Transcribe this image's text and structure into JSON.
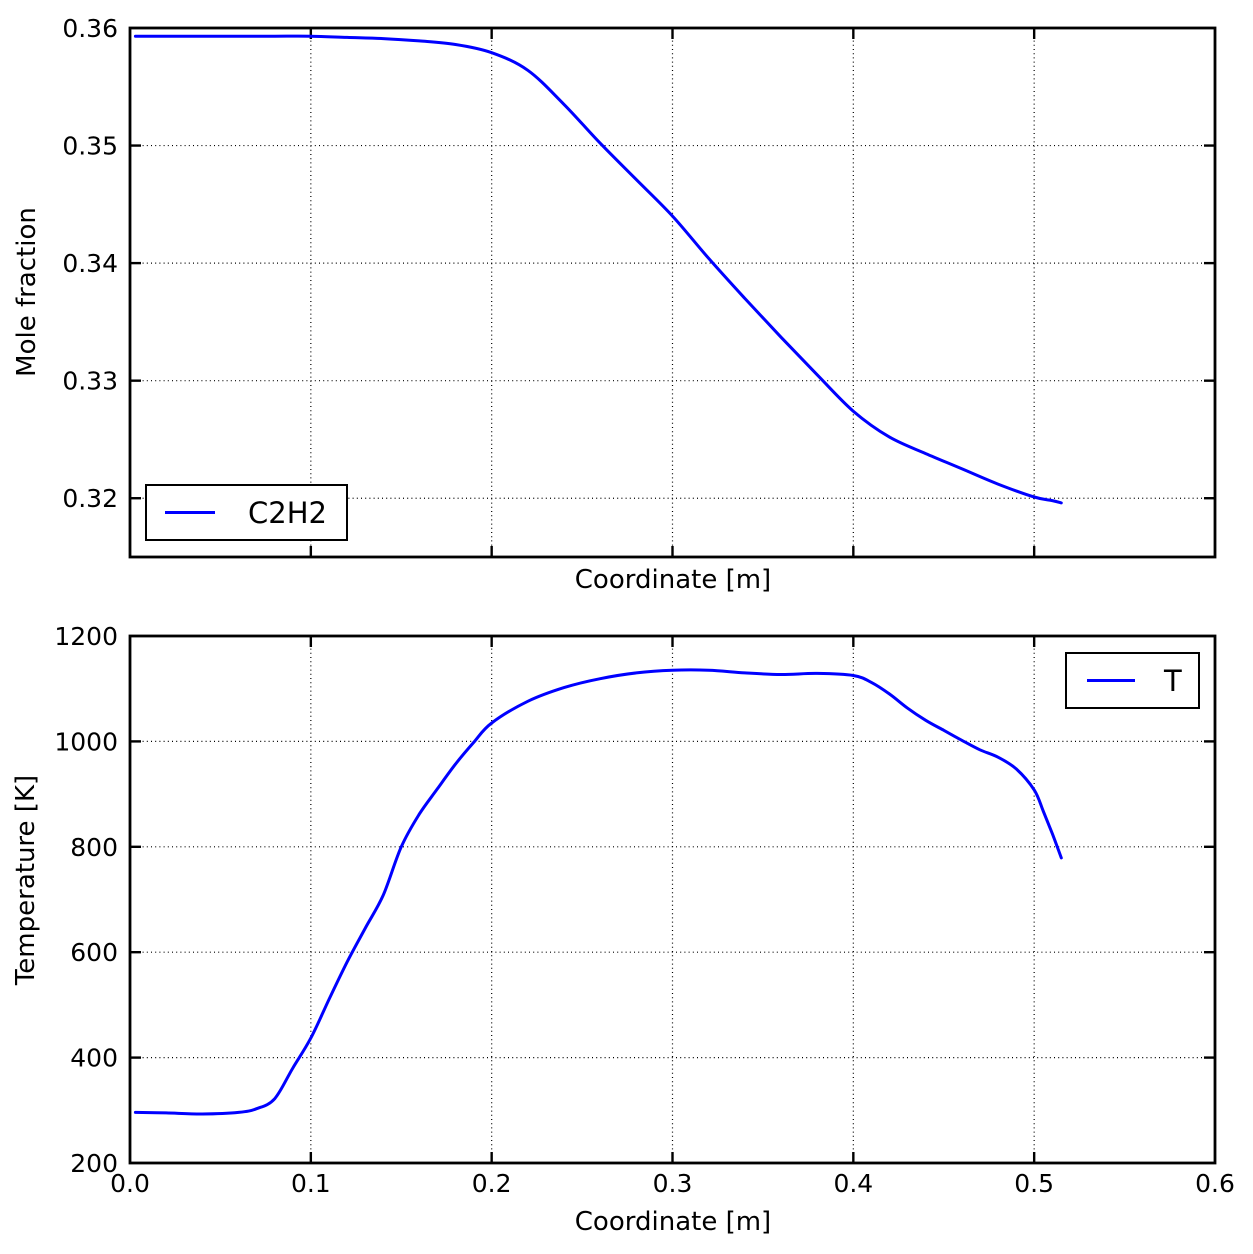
{
  "figure": {
    "background": "#ffffff",
    "axis_color": "#000000",
    "line_color": "#0000ff",
    "grid_style": "dotted"
  },
  "chart_data": [
    {
      "type": "line",
      "title": "",
      "xlabel": "Coordinate [m]",
      "ylabel": "Mole fraction",
      "xlim": [
        0.0,
        0.6
      ],
      "ylim": [
        0.315,
        0.36
      ],
      "xticks": [
        0.0,
        0.1,
        0.2,
        0.3,
        0.4,
        0.5,
        0.6
      ],
      "xtick_labels": [],
      "yticks": [
        0.32,
        0.33,
        0.34,
        0.35,
        0.36
      ],
      "ytick_labels": [
        "0.32",
        "0.33",
        "0.34",
        "0.35",
        "0.36"
      ],
      "grid": true,
      "legend": {
        "label": "C2H2",
        "position": "lower-left"
      },
      "series": [
        {
          "name": "C2H2",
          "color": "#0000ff",
          "x": [
            0.003,
            0.02,
            0.04,
            0.06,
            0.08,
            0.1,
            0.12,
            0.14,
            0.16,
            0.18,
            0.2,
            0.22,
            0.24,
            0.26,
            0.28,
            0.3,
            0.32,
            0.34,
            0.36,
            0.38,
            0.4,
            0.42,
            0.44,
            0.46,
            0.48,
            0.5,
            0.51,
            0.515
          ],
          "y": [
            0.3593,
            0.3593,
            0.3593,
            0.3593,
            0.3593,
            0.3593,
            0.3592,
            0.3591,
            0.3589,
            0.3586,
            0.3579,
            0.3564,
            0.3535,
            0.3502,
            0.3471,
            0.344,
            0.3404,
            0.337,
            0.3337,
            0.3305,
            0.3274,
            0.3252,
            0.3238,
            0.3225,
            0.3212,
            0.3201,
            0.3198,
            0.3196
          ]
        }
      ]
    },
    {
      "type": "line",
      "title": "",
      "xlabel": "Coordinate [m]",
      "ylabel": "Temperature [K]",
      "xlim": [
        0.0,
        0.6
      ],
      "ylim": [
        200,
        1200
      ],
      "xticks": [
        0.0,
        0.1,
        0.2,
        0.3,
        0.4,
        0.5,
        0.6
      ],
      "xtick_labels": [
        "0.0",
        "0.1",
        "0.2",
        "0.3",
        "0.4",
        "0.5",
        "0.6"
      ],
      "yticks": [
        200,
        400,
        600,
        800,
        1000,
        1200
      ],
      "ytick_labels": [
        "200",
        "400",
        "600",
        "800",
        "1000",
        "1200"
      ],
      "grid": true,
      "legend": {
        "label": "T",
        "position": "upper-right"
      },
      "series": [
        {
          "name": "T",
          "color": "#0000ff",
          "x": [
            0.003,
            0.02,
            0.04,
            0.06,
            0.07,
            0.08,
            0.09,
            0.1,
            0.11,
            0.12,
            0.13,
            0.14,
            0.15,
            0.16,
            0.17,
            0.18,
            0.19,
            0.2,
            0.22,
            0.24,
            0.26,
            0.28,
            0.3,
            0.32,
            0.34,
            0.36,
            0.38,
            0.4,
            0.41,
            0.42,
            0.43,
            0.44,
            0.45,
            0.46,
            0.47,
            0.48,
            0.49,
            0.5,
            0.505,
            0.51,
            0.515
          ],
          "y": [
            296,
            295,
            293,
            296,
            303,
            322,
            380,
            437,
            510,
            581,
            645,
            708,
            800,
            862,
            910,
            957,
            998,
            1035,
            1076,
            1102,
            1119,
            1130,
            1135,
            1135,
            1130,
            1127,
            1129,
            1125,
            1112,
            1090,
            1063,
            1040,
            1021,
            1002,
            984,
            970,
            948,
            908,
            868,
            825,
            779
          ]
        }
      ]
    }
  ]
}
